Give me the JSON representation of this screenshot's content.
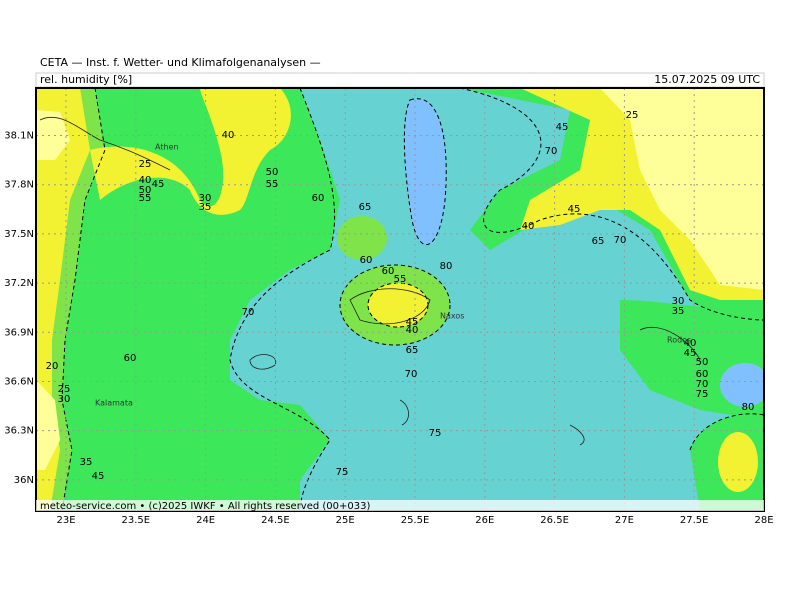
{
  "header": {
    "title": "CETA — Inst. f. Wetter- und Klimafolgenanalysen —",
    "field": "rel. humidity [%]",
    "valid_time": "15.07.2025 09 UTC"
  },
  "map": {
    "lat_range": [
      35.81,
      38.39
    ],
    "lon_range": [
      22.785,
      28.0
    ],
    "lat_ticks": [
      {
        "value": 38.1,
        "label": "38.1N"
      },
      {
        "value": 37.8,
        "label": "37.8N"
      },
      {
        "value": 37.5,
        "label": "37.5N"
      },
      {
        "value": 37.2,
        "label": "37.2N"
      },
      {
        "value": 36.9,
        "label": "36.9N"
      },
      {
        "value": 36.6,
        "label": "36.6N"
      },
      {
        "value": 36.3,
        "label": "36.3N"
      },
      {
        "value": 36,
        "label": "36N"
      }
    ],
    "lon_ticks": [
      {
        "value": 23,
        "label": "23E"
      },
      {
        "value": 23.5,
        "label": "23.5E"
      },
      {
        "value": 24,
        "label": "24E"
      },
      {
        "value": 24.5,
        "label": "24.5E"
      },
      {
        "value": 25,
        "label": "25E"
      },
      {
        "value": 25.5,
        "label": "25.5E"
      },
      {
        "value": 26,
        "label": "26E"
      },
      {
        "value": 26.5,
        "label": "26.5E"
      },
      {
        "value": 27,
        "label": "27E"
      },
      {
        "value": 27.5,
        "label": "27.5E"
      },
      {
        "value": 28,
        "label": "28E"
      }
    ],
    "contour_labels": [
      40,
      25,
      40,
      50,
      55,
      45,
      50,
      55,
      30,
      35,
      60,
      65,
      60,
      60,
      55,
      70,
      45,
      40,
      65,
      70,
      75,
      75,
      80,
      60,
      25,
      45,
      70,
      40,
      65,
      70,
      45,
      30,
      35,
      40,
      45,
      50,
      60,
      70,
      75,
      80,
      20,
      25,
      30,
      35,
      45
    ],
    "place_names": [
      "Athen",
      "Naxos",
      "Rodos",
      "Kalamata"
    ]
  },
  "footer": "meteo-service.com • (c)2025 IWKF • All rights reserved (00+033)"
}
